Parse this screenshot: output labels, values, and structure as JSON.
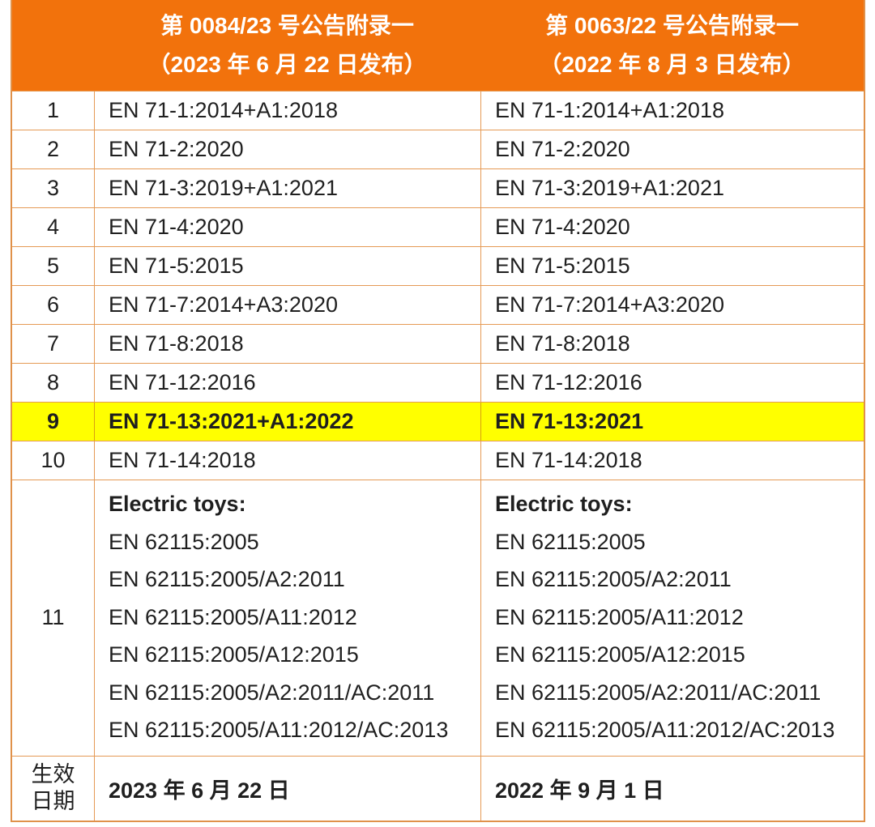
{
  "colors": {
    "header_bg": "#F2720C",
    "header_text": "#FFFFFF",
    "grid_border": "#E59A55",
    "outer_border": "#E0914A",
    "highlight_bg": "#FFFF00",
    "body_text": "#1F1F1F"
  },
  "header": {
    "col_a": {
      "line1": "第 0084/23 号公告附录一",
      "line2": "（2023 年 6 月 22 日发布）"
    },
    "col_b": {
      "line1": "第 0063/22 号公告附录一",
      "line2": "（2022 年 8 月 3 日发布）"
    }
  },
  "rows": [
    {
      "num": "1",
      "a": "EN 71-1:2014+A1:2018",
      "b": "EN 71-1:2014+A1:2018",
      "highlight": false
    },
    {
      "num": "2",
      "a": "EN 71-2:2020",
      "b": "EN 71-2:2020",
      "highlight": false
    },
    {
      "num": "3",
      "a": "EN 71-3:2019+A1:2021",
      "b": "EN 71-3:2019+A1:2021",
      "highlight": false
    },
    {
      "num": "4",
      "a": "EN 71-4:2020",
      "b": "EN 71-4:2020",
      "highlight": false
    },
    {
      "num": "5",
      "a": "EN 71-5:2015",
      "b": "EN 71-5:2015",
      "highlight": false
    },
    {
      "num": "6",
      "a": "EN 71-7:2014+A3:2020",
      "b": "EN 71-7:2014+A3:2020",
      "highlight": false
    },
    {
      "num": "7",
      "a": "EN 71-8:2018",
      "b": "EN 71-8:2018",
      "highlight": false
    },
    {
      "num": "8",
      "a": "EN 71-12:2016",
      "b": "EN 71-12:2016",
      "highlight": false
    },
    {
      "num": "9",
      "a": "EN 71-13:2021+A1:2022",
      "b": "EN 71-13:2021",
      "highlight": true
    },
    {
      "num": "10",
      "a": "EN 71-14:2018",
      "b": "EN 71-14:2018",
      "highlight": false
    }
  ],
  "row11": {
    "num": "11",
    "a_lines": [
      "Electric toys:",
      "EN 62115:2005",
      "EN 62115:2005/A2:2011",
      "EN 62115:2005/A11:2012",
      "EN 62115:2005/A12:2015",
      "EN 62115:2005/A2:2011/AC:2011",
      "EN 62115:2005/A11:2012/AC:2013"
    ],
    "b_lines": [
      "Electric toys:",
      "EN 62115:2005",
      "EN 62115:2005/A2:2011",
      "EN 62115:2005/A11:2012",
      "EN 62115:2005/A12:2015",
      "EN 62115:2005/A2:2011/AC:2011",
      "EN 62115:2005/A11:2012/AC:2013"
    ]
  },
  "footer": {
    "label_line1": "生效",
    "label_line2": "日期",
    "a": "2023 年 6 月 22 日",
    "b": "2022 年 9 月 1 日"
  }
}
